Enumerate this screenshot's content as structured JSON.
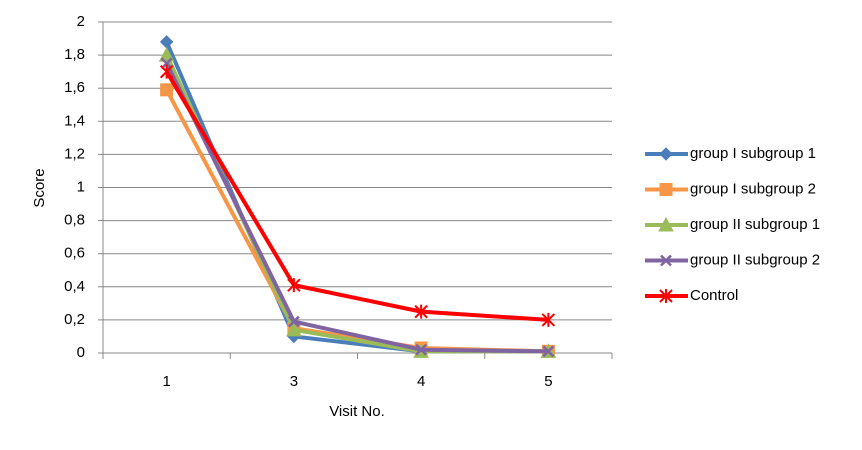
{
  "chart_data": {
    "type": "line",
    "x_label": "Visit No.",
    "y_label": "Score",
    "categories": [
      "1",
      "3",
      "4",
      "5"
    ],
    "ylim": [
      0,
      2
    ],
    "yticks": [
      0,
      {
        "value": 0.2,
        "label": "0,2"
      },
      {
        "value": 0.4,
        "label": "0,4"
      },
      {
        "value": 0.6,
        "label": "0,6"
      },
      {
        "value": 0.8,
        "label": "0,8"
      },
      1,
      {
        "value": 1.2,
        "label": "1,2"
      },
      {
        "value": 1.4,
        "label": "1,4"
      },
      {
        "value": 1.6,
        "label": "1,6"
      },
      {
        "value": 1.8,
        "label": "1,8"
      },
      2
    ],
    "grid": true,
    "legend": "right",
    "series": [
      {
        "name": "group I subgroup 1",
        "color": "#4a7ebb",
        "marker": "diamond",
        "values": [
          1.88,
          0.1,
          0.01,
          0.01
        ]
      },
      {
        "name": "group I subgroup 2",
        "color": "#f79646",
        "marker": "square",
        "values": [
          1.59,
          0.15,
          0.03,
          0.01
        ]
      },
      {
        "name": "group II subgroup 1",
        "color": "#9bbb59",
        "marker": "triangle",
        "values": [
          1.8,
          0.14,
          0.01,
          0.01
        ]
      },
      {
        "name": "group II subgroup 2",
        "color": "#8064a2",
        "marker": "x",
        "values": [
          1.75,
          0.19,
          0.02,
          0.01
        ]
      },
      {
        "name": "Control",
        "color": "#ff0000",
        "marker": "star",
        "values": [
          1.7,
          0.41,
          0.25,
          0.2
        ]
      }
    ]
  }
}
